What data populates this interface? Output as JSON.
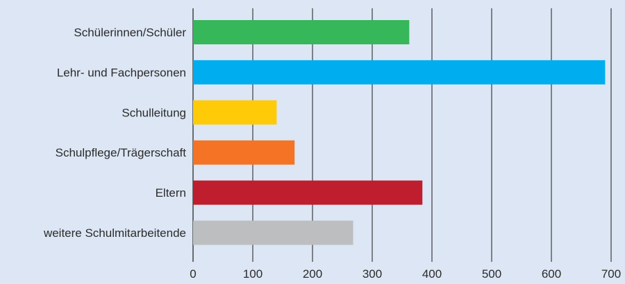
{
  "chart_data": {
    "type": "bar",
    "orientation": "horizontal",
    "categories": [
      "Schülerinnen/Schüler",
      "Lehr- und Fachpersonen",
      "Schulleitung",
      "Schulpflege/Trägerschaft",
      "Eltern",
      "weitere Schulmitarbeitende"
    ],
    "values": [
      362,
      690,
      140,
      170,
      384,
      268
    ],
    "colors": [
      "#35b75a",
      "#00aeef",
      "#ffcb08",
      "#f47324",
      "#be1e2d",
      "#bcbec0"
    ],
    "xlim": [
      0,
      700
    ],
    "xticks": [
      "0",
      "100",
      "200",
      "300",
      "400",
      "500",
      "600",
      "700"
    ],
    "grid": "vertical",
    "background": "#dce6f4"
  }
}
